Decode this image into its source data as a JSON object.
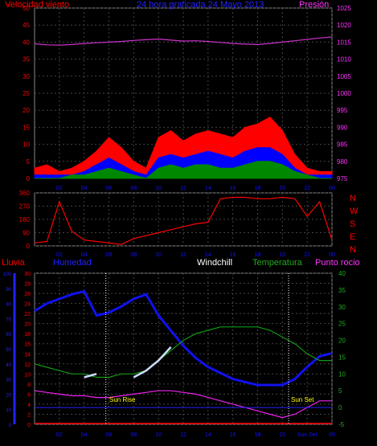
{
  "panels": {
    "wind": {
      "left_label": "Velocidad viento",
      "center_label": "24 hora graficada   24 Mayo 2013",
      "right_label": "Presión",
      "left_ticks": [
        "0",
        "5",
        "10",
        "15",
        "20",
        "25",
        "30",
        "35",
        "40",
        "45",
        "50"
      ],
      "right_ticks": [
        "975",
        "980",
        "985",
        "990",
        "995",
        "1000",
        "1005",
        "1010",
        "1015",
        "1020",
        "1025"
      ],
      "colors": {
        "left_label": "#ff0000",
        "center_label": "#2222ff",
        "right_label": "#ff33ff"
      }
    },
    "direction": {
      "left_ticks": [
        "0",
        "90",
        "180",
        "270",
        "360"
      ],
      "compass": [
        "N",
        "W",
        "S",
        "E",
        "N"
      ],
      "compass_color": "#ff0000"
    },
    "temp": {
      "labels": {
        "lluvia": "Lluvia",
        "humedad": "Humedad",
        "windchill": "Windchill",
        "temperatura": "Temperatura",
        "punto_rocio": "Punto rocio"
      },
      "label_colors": {
        "lluvia": "#ff0000",
        "humedad": "#2222ff",
        "windchill": "#ffffff",
        "temperatura": "#22aa22",
        "punto_rocio": "#ff33ff"
      },
      "rain_ticks": [
        "0",
        "10",
        "20",
        "30",
        "40",
        "50",
        "60",
        "70",
        "80",
        "90",
        "100"
      ],
      "left_ticks": [
        "0",
        "2",
        "4",
        "6",
        "8",
        "10",
        "12",
        "14",
        "16",
        "18",
        "20",
        "22",
        "24",
        "26",
        "28",
        "30"
      ],
      "right_ticks": [
        "-5",
        "0",
        "5",
        "10",
        "15",
        "20",
        "25",
        "30",
        "35",
        "40"
      ],
      "annotations": {
        "sunrise": "Sun Rise",
        "sunset": "Sun Set"
      }
    }
  },
  "x_ticks": [
    "02",
    "04",
    "06",
    "08",
    "10",
    "12",
    "14",
    "16",
    "18",
    "20",
    "22",
    "00"
  ],
  "x_ticks_bottom": [
    "02",
    "04",
    "06",
    "08",
    "10",
    "12",
    "14",
    "16",
    "18",
    "20",
    "Sun Set",
    "00"
  ],
  "chart_data": [
    {
      "type": "line",
      "title": "24 hora graficada   24 Mayo 2013",
      "ylabel": "Velocidad viento",
      "y2label": "Presión",
      "ylim": [
        0,
        50
      ],
      "y2lim": [
        975,
        1025
      ],
      "x_hours": [
        0,
        1,
        2,
        3,
        4,
        5,
        6,
        7,
        8,
        9,
        10,
        11,
        12,
        13,
        14,
        15,
        16,
        17,
        18,
        19,
        20,
        21,
        22,
        23,
        24
      ],
      "series": [
        {
          "name": "Presión",
          "axis": "right",
          "color": "#cc33cc",
          "values": [
            1014.5,
            1014.2,
            1014.1,
            1014.3,
            1014.6,
            1014.8,
            1015.0,
            1015.2,
            1015.5,
            1015.7,
            1015.9,
            1015.6,
            1015.3,
            1015.4,
            1015.2,
            1014.9,
            1014.6,
            1014.4,
            1014.3,
            1014.6,
            1015.0,
            1015.4,
            1015.8,
            1016.2,
            1016.5
          ]
        },
        {
          "color": "#ff0000",
          "values": [
            3,
            4,
            2,
            3,
            5,
            8,
            12,
            9,
            5,
            3,
            12,
            14,
            11,
            13,
            14,
            13,
            12,
            15,
            16,
            18,
            14,
            7,
            3,
            2,
            2
          ]
        },
        {
          "color": "#0000ff",
          "values": [
            1,
            1,
            1,
            1,
            2,
            4,
            6,
            4,
            2,
            1,
            6,
            7,
            6,
            7,
            8,
            7,
            6,
            8,
            9,
            9,
            7,
            3,
            1,
            1,
            1
          ]
        },
        {
          "color": "#008800",
          "values": [
            0,
            0,
            0,
            1,
            1,
            2,
            3,
            2,
            1,
            0,
            3,
            4,
            3,
            4,
            4,
            3,
            3,
            4,
            5,
            5,
            4,
            2,
            1,
            0,
            0
          ]
        }
      ]
    },
    {
      "type": "scatter",
      "ylabel": "",
      "ylim": [
        0,
        360
      ],
      "x_hours": [
        0,
        1,
        2,
        3,
        4,
        5,
        6,
        7,
        8,
        9,
        10,
        11,
        12,
        13,
        14,
        15,
        16,
        17,
        18,
        19,
        20,
        21,
        22,
        23,
        24
      ],
      "series": [
        {
          "color": "#ff0000",
          "values": [
            20,
            30,
            300,
            100,
            40,
            30,
            20,
            10,
            50,
            70,
            90,
            110,
            130,
            150,
            160,
            320,
            330,
            330,
            320,
            320,
            330,
            320,
            200,
            300,
            40
          ]
        }
      ]
    },
    {
      "type": "line",
      "ylabel": "Humedad",
      "ylim": [
        0,
        30
      ],
      "y2lim": [
        -5,
        40
      ],
      "x_hours": [
        0,
        1,
        2,
        3,
        4,
        5,
        6,
        7,
        8,
        9,
        10,
        11,
        12,
        13,
        14,
        15,
        16,
        17,
        18,
        19,
        20,
        21,
        22,
        23,
        24
      ],
      "series": [
        {
          "name": "Humedad",
          "axis": "rain",
          "color": "#1111ee",
          "values": [
            75,
            80,
            83,
            86,
            88,
            72,
            74,
            78,
            83,
            86,
            72,
            62,
            52,
            44,
            38,
            34,
            30,
            28,
            26,
            26,
            26,
            30,
            38,
            45,
            47
          ]
        },
        {
          "name": "Temperatura",
          "axis": "right",
          "color": "#119911",
          "values": [
            13,
            12,
            11,
            10,
            10,
            9,
            9,
            10,
            10,
            11,
            14,
            17,
            20,
            22,
            23,
            24,
            24,
            24,
            24,
            23,
            21,
            19,
            16,
            14,
            14
          ]
        },
        {
          "name": "Punto rocio",
          "axis": "right",
          "color": "#ee22ee",
          "values": [
            5,
            4.5,
            4,
            3.5,
            3.5,
            3,
            3,
            3.5,
            4,
            4.5,
            5,
            5,
            4.5,
            4,
            3,
            2,
            1,
            0,
            -1,
            -2,
            -3,
            -2,
            0,
            2,
            2
          ]
        },
        {
          "name": "Windchill",
          "axis": "right",
          "color": "#ccddff",
          "values": [
            null,
            null,
            null,
            null,
            9,
            10,
            null,
            null,
            9,
            11,
            14,
            18,
            null,
            null,
            null,
            null,
            null,
            null,
            null,
            null,
            null,
            null,
            null,
            null,
            null
          ]
        }
      ]
    }
  ]
}
